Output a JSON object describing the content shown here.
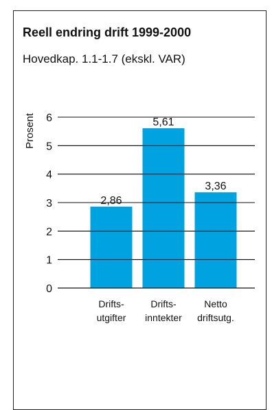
{
  "header": {
    "title": "Reell endring drift 1999-2000",
    "subtitle": "Hovedkap. 1.1-1.7 (ekskl. VAR)"
  },
  "chart_data": {
    "type": "bar",
    "categories": [
      [
        "Drifts-",
        "utgifter"
      ],
      [
        "Drifts-",
        "inntekter"
      ],
      [
        "Netto",
        "driftsutg."
      ]
    ],
    "values": [
      2.86,
      5.61,
      3.36
    ],
    "value_labels": [
      "2,86",
      "5,61",
      "3,36"
    ],
    "ylabel": "Prosent",
    "ylim": [
      0,
      6
    ],
    "yticks": [
      "0",
      "1",
      "2",
      "3",
      "4",
      "5",
      "6"
    ],
    "grid": true,
    "bar_color": "#00a3e0"
  }
}
